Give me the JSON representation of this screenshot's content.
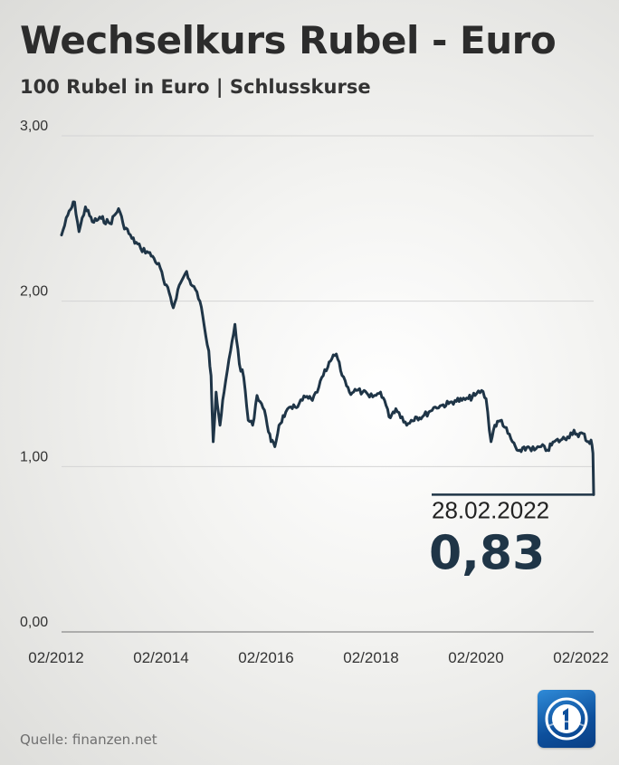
{
  "header": {
    "title": "Wechselkurs Rubel - Euro",
    "subtitle": "100 Rubel in Euro | Schlusskurse"
  },
  "footer": {
    "source": "Quelle: finanzen.net"
  },
  "colors": {
    "line": "#1f3547",
    "value_text": "#1f3547",
    "grid": "#d4d4d4",
    "axis_text": "#333333",
    "logo_blue": "#1565b8"
  },
  "chart_data": {
    "type": "line",
    "title": "Wechselkurs Rubel - Euro",
    "subtitle": "100 Rubel in Euro | Schlusskurse",
    "xlabel": "",
    "ylabel": "",
    "ylim": [
      0,
      3
    ],
    "xlim": [
      "2012-02-01",
      "2022-02-28"
    ],
    "grid": true,
    "x_ticks": [
      "02/2012",
      "02/2014",
      "02/2016",
      "02/2018",
      "02/2020",
      "02/2022"
    ],
    "y_ticks": [
      "0,00",
      "1,00",
      "2,00",
      "3,00"
    ],
    "series": [
      {
        "points": [
          [
            "2012-02-01",
            2.4
          ],
          [
            "2012-03-15",
            2.52
          ],
          [
            "2012-05-01",
            2.6
          ],
          [
            "2012-06-01",
            2.42
          ],
          [
            "2012-07-15",
            2.57
          ],
          [
            "2012-09-01",
            2.48
          ],
          [
            "2012-11-01",
            2.5
          ],
          [
            "2013-01-01",
            2.47
          ],
          [
            "2013-03-01",
            2.56
          ],
          [
            "2013-04-01",
            2.47
          ],
          [
            "2013-06-01",
            2.38
          ],
          [
            "2013-08-01",
            2.32
          ],
          [
            "2013-09-15",
            2.3
          ],
          [
            "2013-11-01",
            2.26
          ],
          [
            "2013-12-15",
            2.2
          ],
          [
            "2014-01-15",
            2.1
          ],
          [
            "2014-02-15",
            2.05
          ],
          [
            "2014-03-15",
            1.96
          ],
          [
            "2014-04-15",
            2.07
          ],
          [
            "2014-05-15",
            2.13
          ],
          [
            "2014-06-15",
            2.18
          ],
          [
            "2014-07-15",
            2.1
          ],
          [
            "2014-08-15",
            2.07
          ],
          [
            "2014-09-15",
            2.0
          ],
          [
            "2014-10-15",
            1.85
          ],
          [
            "2014-11-15",
            1.7
          ],
          [
            "2014-12-01",
            1.55
          ],
          [
            "2014-12-16",
            1.15
          ],
          [
            "2015-01-05",
            1.45
          ],
          [
            "2015-02-01",
            1.25
          ],
          [
            "2015-03-01",
            1.45
          ],
          [
            "2015-04-15",
            1.7
          ],
          [
            "2015-05-15",
            1.86
          ],
          [
            "2015-06-15",
            1.62
          ],
          [
            "2015-07-15",
            1.54
          ],
          [
            "2015-08-15",
            1.28
          ],
          [
            "2015-09-15",
            1.25
          ],
          [
            "2015-10-15",
            1.43
          ],
          [
            "2015-11-15",
            1.38
          ],
          [
            "2015-12-15",
            1.3
          ],
          [
            "2016-01-20",
            1.15
          ],
          [
            "2016-02-15",
            1.12
          ],
          [
            "2016-03-15",
            1.25
          ],
          [
            "2016-05-01",
            1.33
          ],
          [
            "2016-06-15",
            1.35
          ],
          [
            "2016-08-01",
            1.38
          ],
          [
            "2016-09-15",
            1.42
          ],
          [
            "2016-11-01",
            1.4
          ],
          [
            "2016-12-15",
            1.48
          ],
          [
            "2017-01-15",
            1.55
          ],
          [
            "2017-02-15",
            1.6
          ],
          [
            "2017-03-15",
            1.65
          ],
          [
            "2017-04-15",
            1.68
          ],
          [
            "2017-05-15",
            1.58
          ],
          [
            "2017-06-15",
            1.52
          ],
          [
            "2017-07-15",
            1.45
          ],
          [
            "2017-09-01",
            1.46
          ],
          [
            "2017-10-15",
            1.45
          ],
          [
            "2017-12-01",
            1.42
          ],
          [
            "2018-01-15",
            1.43
          ],
          [
            "2018-02-15",
            1.45
          ],
          [
            "2018-03-15",
            1.4
          ],
          [
            "2018-04-15",
            1.3
          ],
          [
            "2018-06-01",
            1.35
          ],
          [
            "2018-07-15",
            1.3
          ],
          [
            "2018-08-15",
            1.25
          ],
          [
            "2018-09-15",
            1.28
          ],
          [
            "2018-10-15",
            1.3
          ],
          [
            "2018-12-01",
            1.3
          ],
          [
            "2019-01-15",
            1.33
          ],
          [
            "2019-03-01",
            1.36
          ],
          [
            "2019-04-15",
            1.37
          ],
          [
            "2019-06-01",
            1.38
          ],
          [
            "2019-07-15",
            1.4
          ],
          [
            "2019-09-01",
            1.4
          ],
          [
            "2019-10-15",
            1.41
          ],
          [
            "2019-12-01",
            1.43
          ],
          [
            "2020-01-15",
            1.46
          ],
          [
            "2020-02-15",
            1.41
          ],
          [
            "2020-03-20",
            1.15
          ],
          [
            "2020-04-15",
            1.25
          ],
          [
            "2020-06-01",
            1.28
          ],
          [
            "2020-07-15",
            1.2
          ],
          [
            "2020-08-15",
            1.15
          ],
          [
            "2020-09-15",
            1.1
          ],
          [
            "2020-10-15",
            1.09
          ],
          [
            "2020-12-01",
            1.12
          ],
          [
            "2021-01-15",
            1.1
          ],
          [
            "2021-03-01",
            1.12
          ],
          [
            "2021-04-15",
            1.1
          ],
          [
            "2021-06-01",
            1.15
          ],
          [
            "2021-07-15",
            1.16
          ],
          [
            "2021-09-01",
            1.18
          ],
          [
            "2021-10-15",
            1.22
          ],
          [
            "2021-11-15",
            1.18
          ],
          [
            "2021-12-15",
            1.2
          ],
          [
            "2022-01-15",
            1.15
          ],
          [
            "2022-02-10",
            1.16
          ],
          [
            "2022-02-23",
            1.08
          ],
          [
            "2022-02-28",
            0.83
          ]
        ]
      }
    ],
    "annotation": {
      "date_label": "28.02.2022",
      "value_label": "0,83",
      "x": "2022-02-28",
      "y": 0.83
    }
  }
}
